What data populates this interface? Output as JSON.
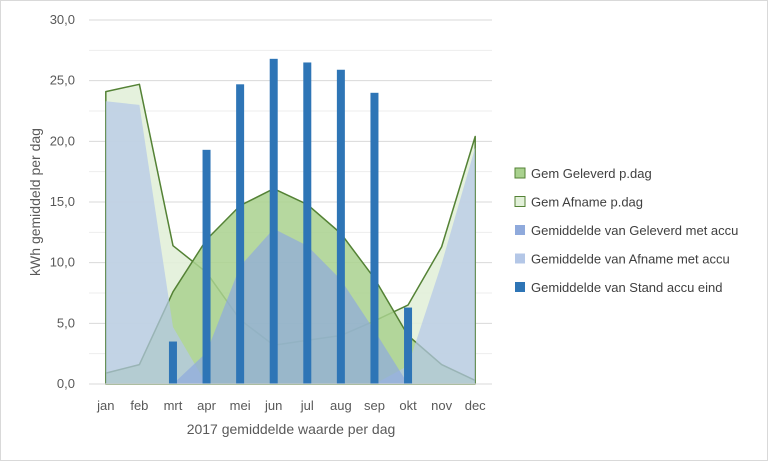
{
  "chart_data": {
    "type": "area",
    "title": "",
    "xlabel": "2017 gemiddelde waarde per dag",
    "ylabel": "kWh gemiddeld per dag",
    "ylim": [
      0,
      30
    ],
    "y_ticks": [
      "0,0",
      "5,0",
      "10,0",
      "15,0",
      "20,0",
      "25,0",
      "30,0"
    ],
    "categories": [
      "jan",
      "feb",
      "mrt",
      "apr",
      "mei",
      "jun",
      "jul",
      "aug",
      "sep",
      "okt",
      "nov",
      "dec"
    ],
    "grid": true,
    "legend_position": "right",
    "series": [
      {
        "name": "Gem Geleverd p.dag",
        "kind": "area",
        "fill": "#a9d18e",
        "stroke": "#548235",
        "values": [
          0.9,
          1.6,
          7.6,
          11.9,
          14.7,
          16.1,
          14.8,
          12.4,
          8.7,
          4.0,
          1.6,
          0.3
        ]
      },
      {
        "name": "Gem Afname p.dag",
        "kind": "area",
        "fill": "#e2f0d9",
        "stroke": "#548235",
        "values": [
          24.1,
          24.7,
          11.4,
          9.2,
          5.3,
          3.2,
          3.6,
          4.0,
          5.2,
          6.5,
          11.3,
          20.4
        ]
      },
      {
        "name": "Gemiddelde van Geleverd met accu",
        "kind": "area",
        "fill": "#8faadc",
        "stroke": "none",
        "values": [
          0.0,
          0.0,
          0.0,
          2.6,
          9.7,
          12.8,
          11.4,
          8.6,
          4.4,
          0.0,
          0.0,
          0.0
        ]
      },
      {
        "name": "Gemiddelde van Afname met accu",
        "kind": "area",
        "fill": "#b4c7e7",
        "stroke": "none",
        "values": [
          23.3,
          23.0,
          4.7,
          0.0,
          0.0,
          0.0,
          0.0,
          0.0,
          0.0,
          1.5,
          9.9,
          19.5
        ]
      },
      {
        "name": "Gemiddelde van Stand accu eind",
        "kind": "bar",
        "fill": "#2e75b6",
        "values": [
          null,
          null,
          3.5,
          19.3,
          24.7,
          26.8,
          26.5,
          25.9,
          24.0,
          6.3,
          null,
          null
        ]
      }
    ]
  }
}
